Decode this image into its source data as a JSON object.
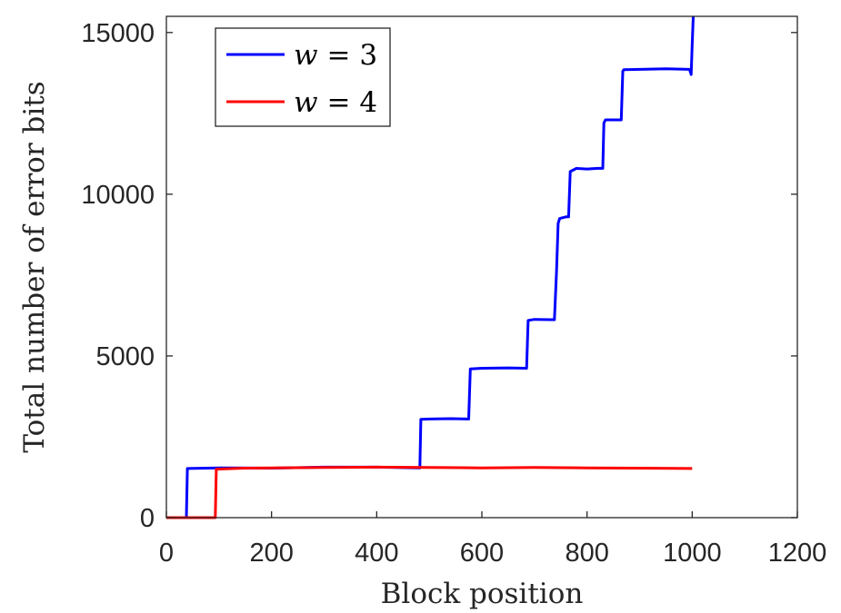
{
  "chart_data": {
    "type": "line",
    "title": "",
    "xlabel": "Block position",
    "ylabel": "Total number of error bits",
    "xlim": [
      0,
      1200
    ],
    "ylim": [
      0,
      15500
    ],
    "xticks": [
      0,
      200,
      400,
      600,
      800,
      1000,
      1200
    ],
    "xtick_labels": [
      "0",
      "200",
      "400",
      "600",
      "800",
      "1000",
      "1200"
    ],
    "yticks": [
      0,
      5000,
      10000,
      15000
    ],
    "ytick_labels": [
      "0",
      "5000",
      "10000",
      "15000"
    ],
    "grid": false,
    "legend_position": "top-left",
    "series": [
      {
        "name": "w = 3",
        "legend_var": "w",
        "legend_eq": "= 3",
        "color": "#0000ff",
        "x": [
          0,
          38,
          40,
          100,
          200,
          300,
          400,
          482,
          484,
          500,
          540,
          575,
          578,
          600,
          650,
          685,
          688,
          700,
          730,
          738,
          742,
          745,
          748,
          760,
          765,
          768,
          780,
          800,
          820,
          830,
          832,
          835,
          850,
          865,
          868,
          870,
          900,
          950,
          995,
          998,
          1000,
          1002
        ],
        "y": [
          0,
          0,
          1520,
          1540,
          1530,
          1560,
          1560,
          1540,
          3040,
          3050,
          3060,
          3050,
          4600,
          4620,
          4630,
          4620,
          6100,
          6130,
          6120,
          6120,
          7600,
          9100,
          9250,
          9300,
          9300,
          10700,
          10800,
          10780,
          10800,
          10800,
          12200,
          12300,
          12300,
          12300,
          13800,
          13850,
          13860,
          13880,
          13860,
          13700,
          14600,
          15500
        ]
      },
      {
        "name": "w = 4",
        "legend_var": "w",
        "legend_eq": "= 4",
        "color": "#ff0000",
        "x": [
          0,
          93,
          95,
          150,
          200,
          300,
          400,
          500,
          600,
          700,
          800,
          900,
          1000
        ],
        "y": [
          0,
          0,
          1500,
          1530,
          1540,
          1550,
          1560,
          1550,
          1540,
          1550,
          1540,
          1530,
          1520
        ]
      }
    ]
  }
}
